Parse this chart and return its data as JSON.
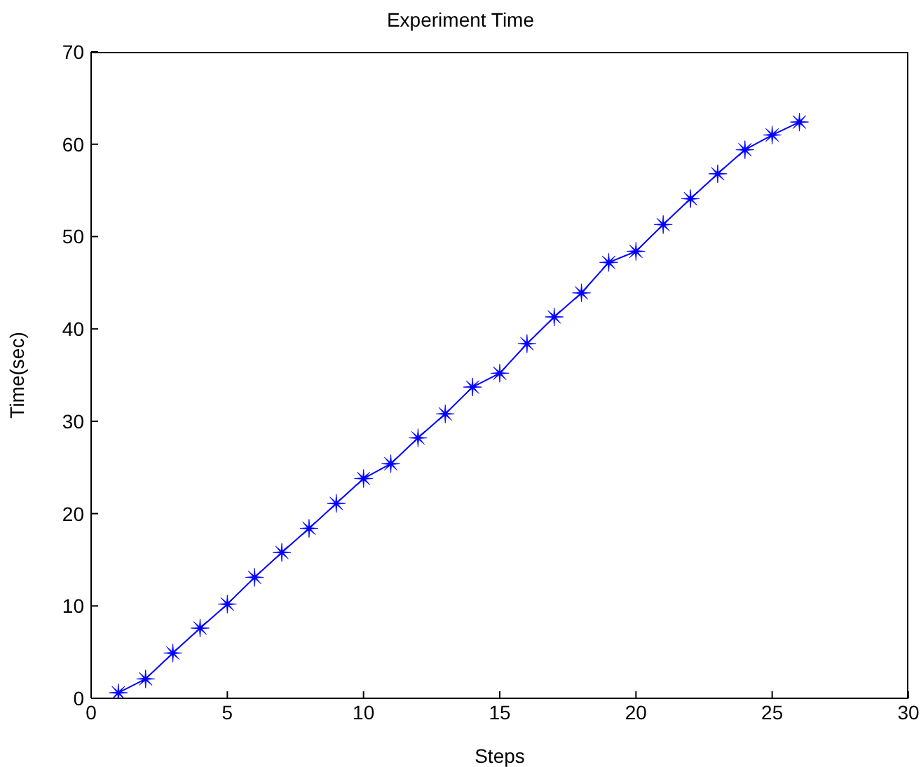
{
  "chart_data": {
    "type": "line",
    "title": "Experiment Time",
    "xlabel": "Steps",
    "ylabel": "Time(sec)",
    "x": [
      1,
      2,
      3,
      4,
      5,
      6,
      7,
      8,
      9,
      10,
      11,
      12,
      13,
      14,
      15,
      16,
      17,
      18,
      19,
      20,
      21,
      22,
      23,
      24,
      25,
      26
    ],
    "series": [
      {
        "color": "#0000ff",
        "values": [
          0.6,
          2.1,
          4.9,
          7.6,
          10.2,
          13.1,
          15.8,
          18.4,
          21.1,
          23.8,
          25.4,
          28.2,
          30.8,
          33.7,
          35.2,
          38.4,
          41.3,
          43.9,
          47.2,
          48.4,
          51.3,
          54.1,
          56.8,
          59.4,
          61.0,
          62.4
        ]
      }
    ],
    "xlim": [
      0,
      30
    ],
    "xticks": [
      0,
      5,
      10,
      15,
      20,
      25,
      30
    ],
    "ylim": [
      0,
      70
    ],
    "yticks": [
      0,
      10,
      20,
      30,
      40,
      50,
      60,
      70
    ],
    "grid": false,
    "legend": false,
    "marker": "star",
    "line_style": "solid"
  }
}
